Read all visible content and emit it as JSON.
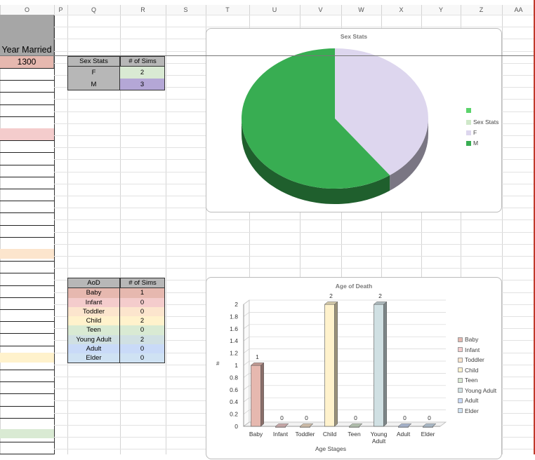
{
  "columns": [
    "O",
    "P",
    "Q",
    "R",
    "S",
    "T",
    "U",
    "V",
    "W",
    "X",
    "Y",
    "Z",
    "AA"
  ],
  "year_married": {
    "header": "Year Married",
    "value": "1300"
  },
  "sex_table": {
    "headers": [
      "Sex Stats",
      "# of Sims"
    ],
    "rows": [
      {
        "label": "F",
        "value": "2",
        "color": "#d9ead3"
      },
      {
        "label": "M",
        "value": "3",
        "color": "#b4a7d6"
      }
    ]
  },
  "aod_table": {
    "headers": [
      "AoD",
      "# of Sims"
    ],
    "rows": [
      {
        "label": "Baby",
        "value": "1",
        "color": "#e6b8af"
      },
      {
        "label": "Infant",
        "value": "0",
        "color": "#f4cccc"
      },
      {
        "label": "Toddler",
        "value": "0",
        "color": "#fce5cd"
      },
      {
        "label": "Child",
        "value": "2",
        "color": "#fff2cc"
      },
      {
        "label": "Teen",
        "value": "0",
        "color": "#d9ead3"
      },
      {
        "label": "Young Adult",
        "value": "2",
        "color": "#d0e0e3"
      },
      {
        "label": "Adult",
        "value": "0",
        "color": "#c9daf8"
      },
      {
        "label": "Elder",
        "value": "0",
        "color": "#cfe2f3"
      }
    ]
  },
  "chart_data": [
    {
      "type": "pie",
      "title": "Sex Stats",
      "categories": [
        "F",
        "M"
      ],
      "values": [
        2,
        3
      ],
      "colors": [
        "#ddd6ee",
        "#38ad52"
      ],
      "legend": [
        "",
        "Sex Stats",
        "F",
        "M"
      ],
      "legend_colors": [
        "#5bd36b",
        "#cfe8c9",
        "#ddd6ee",
        "#38ad52"
      ],
      "legend_position": "right"
    },
    {
      "type": "bar",
      "title": "Age of Death",
      "categories": [
        "Baby",
        "Infant",
        "Toddler",
        "Child",
        "Teen",
        "Young Adult",
        "Adult",
        "Elder"
      ],
      "values": [
        1,
        0,
        0,
        2,
        0,
        2,
        0,
        0
      ],
      "colors": [
        "#e6b8af",
        "#f4cccc",
        "#fce5cd",
        "#fff2cc",
        "#d9ead3",
        "#d0e0e3",
        "#c9daf8",
        "#cfe2f3"
      ],
      "xlabel": "Age Stages",
      "ylabel": "#",
      "ylim": [
        0,
        2
      ],
      "yticks": [
        "0",
        "0.2",
        "0.4",
        "0.6",
        "0.8",
        "1",
        "1.2",
        "1.4",
        "1.6",
        "1.8",
        "2"
      ],
      "grid": true,
      "legend_position": "right"
    }
  ]
}
